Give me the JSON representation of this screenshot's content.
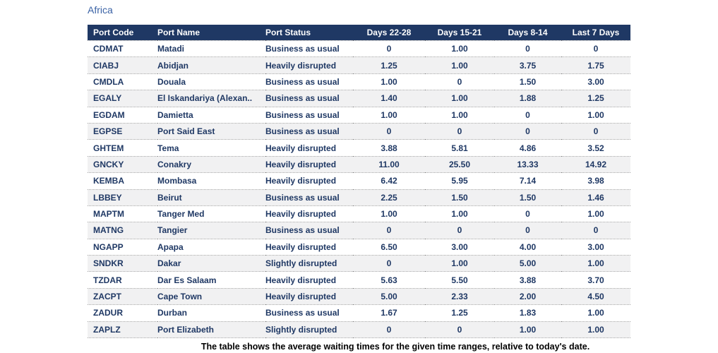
{
  "title": "Africa",
  "caption": "The table shows the average waiting times for the given time ranges, relative to today's date.",
  "colors": {
    "header_bg": "#1f3864",
    "header_text": "#ffffff",
    "cell_text": "#1f3864",
    "title_text": "#3a62a5",
    "alt_row_bg": "#f1f1f2",
    "divider": "#9e9e9e"
  },
  "chart_data": {
    "type": "table",
    "title": "Africa",
    "columns": [
      "Port Code",
      "Port Name",
      "Port Status",
      "Days 22-28",
      "Days 15-21",
      "Days 8-14",
      "Last 7 Days"
    ],
    "column_aligns": [
      "left",
      "left",
      "left",
      "center",
      "center",
      "center",
      "center"
    ],
    "rows": [
      [
        "CDMAT",
        "Matadi",
        "Business as usual",
        "0",
        "1.00",
        "0",
        "0"
      ],
      [
        "CIABJ",
        "Abidjan",
        "Heavily disrupted",
        "1.25",
        "1.00",
        "3.75",
        "1.75"
      ],
      [
        "CMDLA",
        "Douala",
        "Business as usual",
        "1.00",
        "0",
        "1.50",
        "3.00"
      ],
      [
        "EGALY",
        "El Iskandariya (Alexan..",
        "Business as usual",
        "1.40",
        "1.00",
        "1.88",
        "1.25"
      ],
      [
        "EGDAM",
        "Damietta",
        "Business as usual",
        "1.00",
        "1.00",
        "0",
        "1.00"
      ],
      [
        "EGPSE",
        "Port Said East",
        "Business as usual",
        "0",
        "0",
        "0",
        "0"
      ],
      [
        "GHTEM",
        "Tema",
        "Heavily disrupted",
        "3.88",
        "5.81",
        "4.86",
        "3.52"
      ],
      [
        "GNCKY",
        "Conakry",
        "Heavily disrupted",
        "11.00",
        "25.50",
        "13.33",
        "14.92"
      ],
      [
        "KEMBA",
        "Mombasa",
        "Heavily disrupted",
        "6.42",
        "5.95",
        "7.14",
        "3.98"
      ],
      [
        "LBBEY",
        "Beirut",
        "Business as usual",
        "2.25",
        "1.50",
        "1.50",
        "1.46"
      ],
      [
        "MAPTM",
        "Tanger Med",
        "Heavily disrupted",
        "1.00",
        "1.00",
        "0",
        "1.00"
      ],
      [
        "MATNG",
        "Tangier",
        "Business as usual",
        "0",
        "0",
        "0",
        "0"
      ],
      [
        "NGAPP",
        "Apapa",
        "Heavily disrupted",
        "6.50",
        "3.00",
        "4.00",
        "3.00"
      ],
      [
        "SNDKR",
        "Dakar",
        "Slightly disrupted",
        "0",
        "1.00",
        "5.00",
        "1.00"
      ],
      [
        "TZDAR",
        "Dar Es Salaam",
        "Heavily disrupted",
        "5.63",
        "5.50",
        "3.88",
        "3.70"
      ],
      [
        "ZACPT",
        "Cape Town",
        "Heavily disrupted",
        "5.00",
        "2.33",
        "2.00",
        "4.50"
      ],
      [
        "ZADUR",
        "Durban",
        "Business as usual",
        "1.67",
        "1.25",
        "1.83",
        "1.00"
      ],
      [
        "ZAPLZ",
        "Port Elizabeth",
        "Slightly disrupted",
        "0",
        "0",
        "1.00",
        "1.00"
      ]
    ]
  }
}
